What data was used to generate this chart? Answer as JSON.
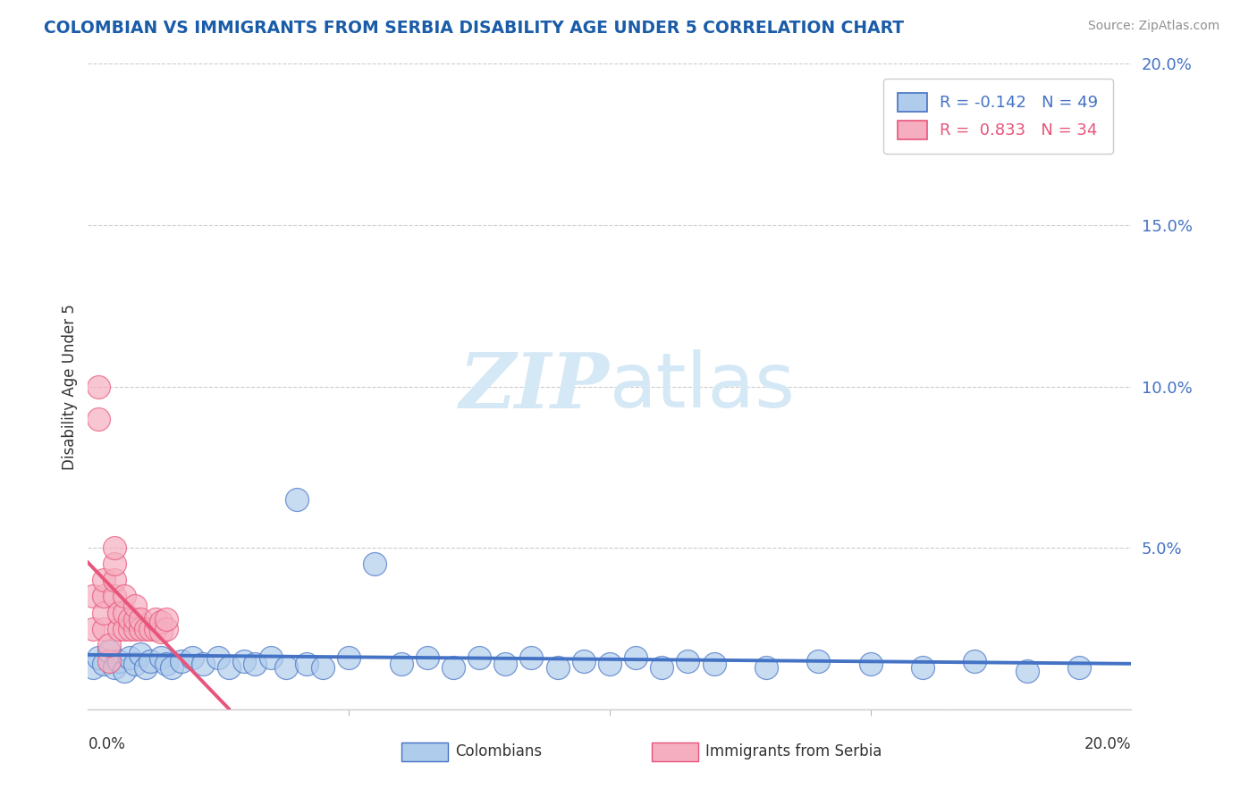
{
  "title": "COLOMBIAN VS IMMIGRANTS FROM SERBIA DISABILITY AGE UNDER 5 CORRELATION CHART",
  "source": "Source: ZipAtlas.com",
  "ylabel": "Disability Age Under 5",
  "legend_colombians": "Colombians",
  "legend_serbia": "Immigrants from Serbia",
  "r_colombians": -0.142,
  "n_colombians": 49,
  "r_serbia": 0.833,
  "n_serbia": 34,
  "xlim": [
    0.0,
    0.2
  ],
  "ylim": [
    0.0,
    0.2
  ],
  "color_colombians": "#b0ccec",
  "color_serbia": "#f5aec0",
  "line_color_colombians": "#4472c4",
  "line_color_serbia": "#e8547a",
  "background_color": "#ffffff",
  "title_color": "#1a5ca8",
  "source_color": "#909090",
  "watermark_color": "#d5e8f5",
  "colombians_x": [
    0.001,
    0.002,
    0.003,
    0.004,
    0.005,
    0.006,
    0.007,
    0.008,
    0.009,
    0.01,
    0.011,
    0.012,
    0.014,
    0.015,
    0.016,
    0.018,
    0.02,
    0.022,
    0.025,
    0.027,
    0.03,
    0.032,
    0.035,
    0.038,
    0.04,
    0.042,
    0.045,
    0.05,
    0.055,
    0.06,
    0.065,
    0.07,
    0.075,
    0.08,
    0.085,
    0.09,
    0.095,
    0.1,
    0.105,
    0.11,
    0.115,
    0.12,
    0.13,
    0.14,
    0.15,
    0.16,
    0.17,
    0.18,
    0.19
  ],
  "colombians_y": [
    0.013,
    0.016,
    0.014,
    0.018,
    0.013,
    0.015,
    0.012,
    0.016,
    0.014,
    0.017,
    0.013,
    0.015,
    0.016,
    0.014,
    0.013,
    0.015,
    0.016,
    0.014,
    0.016,
    0.013,
    0.015,
    0.014,
    0.016,
    0.013,
    0.065,
    0.014,
    0.013,
    0.016,
    0.045,
    0.014,
    0.016,
    0.013,
    0.016,
    0.014,
    0.016,
    0.013,
    0.015,
    0.014,
    0.016,
    0.013,
    0.015,
    0.014,
    0.013,
    0.015,
    0.014,
    0.013,
    0.015,
    0.012,
    0.013
  ],
  "serbia_x": [
    0.001,
    0.001,
    0.002,
    0.002,
    0.003,
    0.003,
    0.003,
    0.003,
    0.004,
    0.004,
    0.005,
    0.005,
    0.005,
    0.005,
    0.006,
    0.006,
    0.007,
    0.007,
    0.007,
    0.008,
    0.008,
    0.009,
    0.009,
    0.009,
    0.01,
    0.01,
    0.011,
    0.012,
    0.013,
    0.013,
    0.014,
    0.014,
    0.015,
    0.015
  ],
  "serbia_y": [
    0.025,
    0.035,
    0.09,
    0.1,
    0.025,
    0.03,
    0.035,
    0.04,
    0.015,
    0.02,
    0.035,
    0.04,
    0.045,
    0.05,
    0.025,
    0.03,
    0.025,
    0.03,
    0.035,
    0.025,
    0.028,
    0.025,
    0.028,
    0.032,
    0.025,
    0.028,
    0.025,
    0.025,
    0.025,
    0.028,
    0.024,
    0.027,
    0.025,
    0.028
  ]
}
